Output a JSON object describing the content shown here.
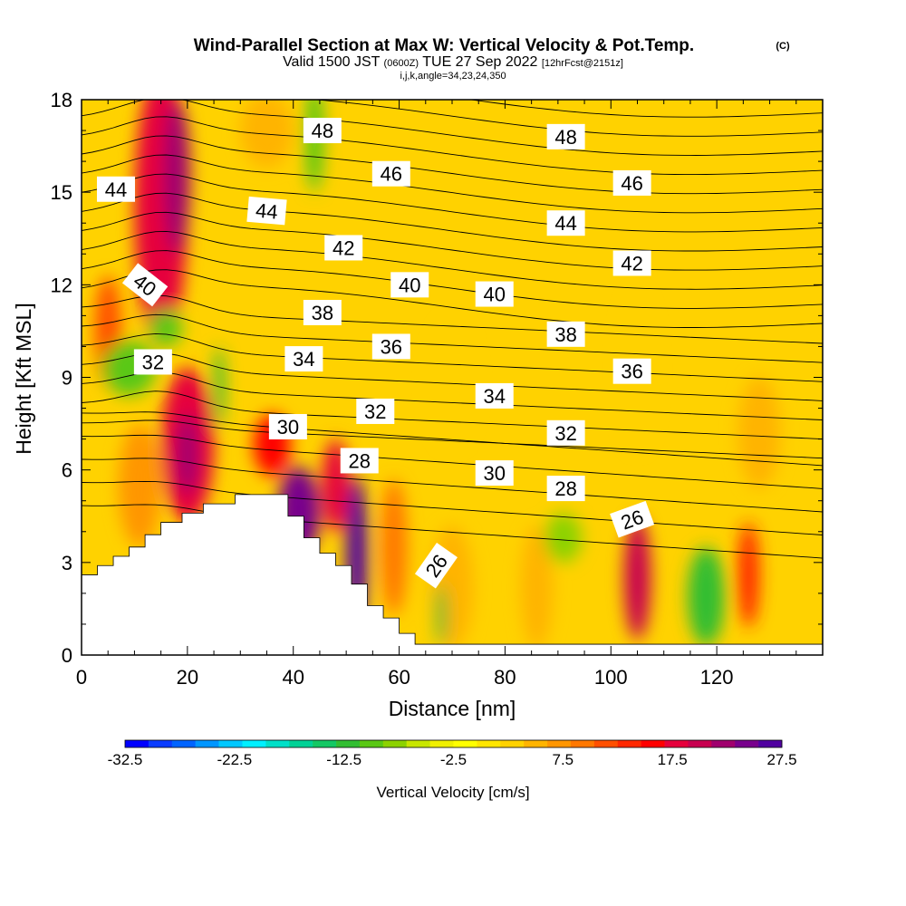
{
  "header": {
    "title": "Wind-Parallel Section at Max W: Vertical Velocity & Pot.Temp.",
    "title_mark": "(C)",
    "subtitle_prefix": "Valid 1500 JST",
    "subtitle_z": "(0600Z)",
    "subtitle_date": "TUE 27 Sep 2022",
    "subtitle_fcst": "[12hrFcst@2151z]",
    "params": "i,j,k,angle=34,23,24,350"
  },
  "chart_data": {
    "type": "heatmap",
    "xlabel": "Distance [nm]",
    "ylabel": "Height [Kft MSL]",
    "xlim": [
      0,
      140
    ],
    "ylim": [
      0,
      18
    ],
    "x_ticks": [
      "0",
      "20",
      "40",
      "60",
      "80",
      "100",
      "120"
    ],
    "x_tick_values": [
      0,
      20,
      40,
      60,
      80,
      100,
      120
    ],
    "y_ticks": [
      "0",
      "3",
      "6",
      "9",
      "12",
      "15",
      "18"
    ],
    "y_tick_values": [
      0,
      3,
      6,
      9,
      12,
      15,
      18
    ],
    "colorbar": {
      "title": "Vertical Velocity [cm/s]",
      "labels": [
        "-32.5",
        "-22.5",
        "-12.5",
        "-2.5",
        "7.5",
        "17.5",
        "27.5"
      ],
      "label_values": [
        -32.5,
        -22.5,
        -12.5,
        -2.5,
        7.5,
        17.5,
        27.5
      ],
      "min": -32.5,
      "max": 27.5,
      "colors": [
        "#0000ff",
        "#0a3cff",
        "#0064ff",
        "#0096ff",
        "#00c8ff",
        "#00f0ff",
        "#00e0c8",
        "#00d296",
        "#14c864",
        "#32be32",
        "#5ac814",
        "#8cd200",
        "#c8e600",
        "#f0f000",
        "#ffff00",
        "#ffe600",
        "#ffd200",
        "#ffb400",
        "#ff9600",
        "#ff7800",
        "#ff5000",
        "#ff2800",
        "#ff0000",
        "#e6003c",
        "#c80050",
        "#a0006e",
        "#78008c",
        "#5000a0"
      ]
    },
    "terrain": [
      [
        0,
        2.6
      ],
      [
        3,
        2.6
      ],
      [
        3,
        2.9
      ],
      [
        6,
        2.9
      ],
      [
        6,
        3.2
      ],
      [
        9,
        3.2
      ],
      [
        9,
        3.5
      ],
      [
        12,
        3.5
      ],
      [
        12,
        3.9
      ],
      [
        15,
        3.9
      ],
      [
        15,
        4.3
      ],
      [
        19,
        4.3
      ],
      [
        19,
        4.6
      ],
      [
        23,
        4.6
      ],
      [
        23,
        4.9
      ],
      [
        29,
        4.9
      ],
      [
        29,
        5.2
      ],
      [
        39,
        5.2
      ],
      [
        39,
        4.5
      ],
      [
        42,
        4.5
      ],
      [
        42,
        3.8
      ],
      [
        45,
        3.8
      ],
      [
        45,
        3.3
      ],
      [
        48,
        3.3
      ],
      [
        48,
        2.9
      ],
      [
        51,
        2.9
      ],
      [
        51,
        2.3
      ],
      [
        54,
        2.3
      ],
      [
        54,
        1.6
      ],
      [
        57,
        1.6
      ],
      [
        57,
        1.2
      ],
      [
        60,
        1.2
      ],
      [
        60,
        0.7
      ],
      [
        63,
        0.7
      ],
      [
        63,
        0.35
      ],
      [
        66,
        0.35
      ],
      [
        66,
        0.35
      ],
      [
        140,
        0.35
      ]
    ],
    "velocity_cells": [
      {
        "x": 15,
        "y": 14.5,
        "rx": 5,
        "ry": 4.5,
        "value": 17.5
      },
      {
        "x": 18,
        "y": 15.5,
        "rx": 2.5,
        "ry": 2.5,
        "value": 22
      },
      {
        "x": 5,
        "y": 10.5,
        "rx": 2.5,
        "ry": 1.8,
        "value": 12
      },
      {
        "x": 20,
        "y": 6.8,
        "rx": 5,
        "ry": 2.5,
        "value": 17.5
      },
      {
        "x": 20,
        "y": 6.5,
        "rx": 2,
        "ry": 1.3,
        "value": 22
      },
      {
        "x": 11,
        "y": 5.5,
        "rx": 4,
        "ry": 2,
        "value": 7.5
      },
      {
        "x": 41,
        "y": 4.6,
        "rx": 4,
        "ry": 1.5,
        "value": 25
      },
      {
        "x": 52,
        "y": 3.2,
        "rx": 2,
        "ry": 2.6,
        "value": 27
      },
      {
        "x": 48,
        "y": 5.5,
        "rx": 2.5,
        "ry": 1.5,
        "value": 17.5
      },
      {
        "x": 59,
        "y": 3.5,
        "rx": 2.5,
        "ry": 2.2,
        "value": 10
      },
      {
        "x": 36,
        "y": 6.8,
        "rx": 3.5,
        "ry": 1,
        "value": 15
      },
      {
        "x": 105,
        "y": 2.5,
        "rx": 2.5,
        "ry": 2,
        "value": 20
      },
      {
        "x": 126,
        "y": 2.6,
        "rx": 2,
        "ry": 1.7,
        "value": 13
      },
      {
        "x": 70,
        "y": 2.2,
        "rx": 4,
        "ry": 2,
        "value": 5
      },
      {
        "x": 86,
        "y": 2.2,
        "rx": 3,
        "ry": 2,
        "value": 5
      },
      {
        "x": 44,
        "y": 16.8,
        "rx": 1.8,
        "ry": 1.8,
        "value": -10
      },
      {
        "x": 9,
        "y": 9.3,
        "rx": 5,
        "ry": 0.9,
        "value": -10
      },
      {
        "x": 16,
        "y": 10.6,
        "rx": 3,
        "ry": 0.6,
        "value": -10
      },
      {
        "x": 26,
        "y": 8.7,
        "rx": 1,
        "ry": 1.3,
        "value": -13
      },
      {
        "x": 118,
        "y": 1.9,
        "rx": 3.5,
        "ry": 1.6,
        "value": -12.5
      },
      {
        "x": 91,
        "y": 3.8,
        "rx": 3.5,
        "ry": 0.8,
        "value": -8
      },
      {
        "x": 68,
        "y": 1.3,
        "rx": 1,
        "ry": 1,
        "value": -12
      },
      {
        "x": 105,
        "y": 9.2,
        "rx": 3,
        "ry": 2.5,
        "value": 3
      },
      {
        "x": 128,
        "y": 7.2,
        "rx": 4,
        "ry": 1.8,
        "value": 5
      },
      {
        "x": 70,
        "y": 8.8,
        "rx": 4,
        "ry": 2,
        "value": 3
      },
      {
        "x": 35,
        "y": 17,
        "rx": 5,
        "ry": 1.2,
        "value": 5
      }
    ],
    "theta_levels": {
      "values": [
        26,
        28,
        30,
        32,
        34,
        36,
        38,
        40,
        42,
        44,
        46,
        48
      ],
      "x_start": 0,
      "x_end": 140
    },
    "contour_labels": [
      {
        "text": "44",
        "x": 6.5,
        "y": 15.1,
        "angle": 0
      },
      {
        "text": "48",
        "x": 45.5,
        "y": 17.0,
        "angle": 0
      },
      {
        "text": "48",
        "x": 91.5,
        "y": 16.8,
        "angle": 0
      },
      {
        "text": "46",
        "x": 58.5,
        "y": 15.6,
        "angle": 0
      },
      {
        "text": "46",
        "x": 104,
        "y": 15.3,
        "angle": 0
      },
      {
        "text": "44",
        "x": 35,
        "y": 14.4,
        "angle": 5
      },
      {
        "text": "44",
        "x": 91.5,
        "y": 14.0,
        "angle": 0
      },
      {
        "text": "42",
        "x": 49.5,
        "y": 13.2,
        "angle": 0
      },
      {
        "text": "42",
        "x": 104,
        "y": 12.7,
        "angle": 0
      },
      {
        "text": "40",
        "x": 12,
        "y": 12.0,
        "angle": 38
      },
      {
        "text": "40",
        "x": 62,
        "y": 12.0,
        "angle": 0
      },
      {
        "text": "40",
        "x": 78,
        "y": 11.7,
        "angle": 0
      },
      {
        "text": "38",
        "x": 45.5,
        "y": 11.1,
        "angle": 0
      },
      {
        "text": "38",
        "x": 91.5,
        "y": 10.4,
        "angle": 0
      },
      {
        "text": "36",
        "x": 58.5,
        "y": 10.0,
        "angle": 0
      },
      {
        "text": "36",
        "x": 104,
        "y": 9.2,
        "angle": 0
      },
      {
        "text": "34",
        "x": 42,
        "y": 9.6,
        "angle": 0
      },
      {
        "text": "34",
        "x": 78,
        "y": 8.4,
        "angle": 0
      },
      {
        "text": "32",
        "x": 13.5,
        "y": 9.5,
        "angle": 0
      },
      {
        "text": "32",
        "x": 55.5,
        "y": 7.9,
        "angle": 0
      },
      {
        "text": "32",
        "x": 91.5,
        "y": 7.2,
        "angle": 0
      },
      {
        "text": "30",
        "x": 39,
        "y": 7.4,
        "angle": 0
      },
      {
        "text": "30",
        "x": 78,
        "y": 5.9,
        "angle": 0
      },
      {
        "text": "28",
        "x": 52.5,
        "y": 6.3,
        "angle": 0
      },
      {
        "text": "28",
        "x": 91.5,
        "y": 5.4,
        "angle": 0
      },
      {
        "text": "26",
        "x": 104,
        "y": 4.4,
        "angle": -20
      },
      {
        "text": "26",
        "x": 67,
        "y": 2.9,
        "angle": -55
      }
    ]
  }
}
